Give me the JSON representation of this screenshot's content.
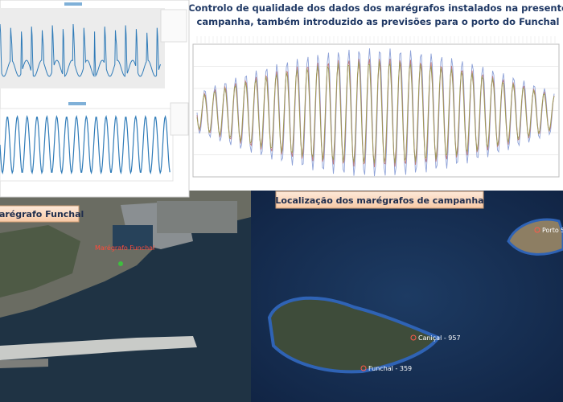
{
  "slide": {
    "title": "Controlo de qualidade dos dados dos marégrafos instalados na presente campanha, também introduzido as previsões para o porto do Funchal",
    "harbor_label": "Marégrafo Funchal",
    "harbor_map_label": "Marégrafo Funchal",
    "map_label": "Localização dos marégrafos de campanha",
    "places": [
      "Porto Santo",
      "Caniçal - 957",
      "Funchal - 359"
    ]
  }
}
